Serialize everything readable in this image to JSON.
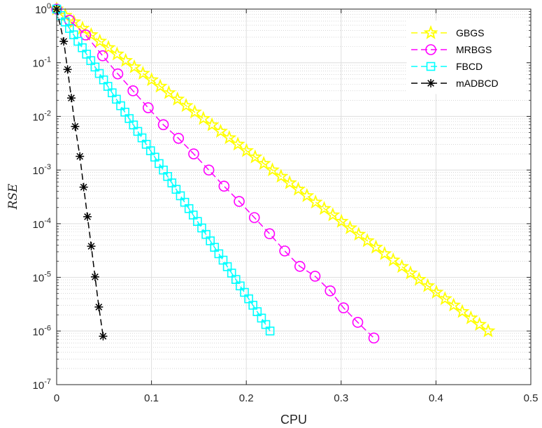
{
  "chart_data": {
    "type": "line",
    "title": "",
    "xlabel": "CPU",
    "ylabel": "RSE",
    "xscale": "linear",
    "yscale": "log",
    "xlim": [
      0,
      0.5
    ],
    "ylim": [
      1e-07,
      1
    ],
    "grid": true,
    "minor_grid": true,
    "legend_position": "top-right",
    "x_ticks": [
      {
        "value": 0,
        "label": "0"
      },
      {
        "value": 0.1,
        "label": "0.1"
      },
      {
        "value": 0.2,
        "label": "0.2"
      },
      {
        "value": 0.3,
        "label": "0.3"
      },
      {
        "value": 0.4,
        "label": "0.4"
      },
      {
        "value": 0.5,
        "label": "0.5"
      }
    ],
    "y_ticks": [
      {
        "value": 1e-07,
        "base": "10",
        "exp": "-7"
      },
      {
        "value": 1e-06,
        "base": "10",
        "exp": "-6"
      },
      {
        "value": 1e-05,
        "base": "10",
        "exp": "-5"
      },
      {
        "value": 0.0001,
        "base": "10",
        "exp": "-4"
      },
      {
        "value": 0.001,
        "base": "10",
        "exp": "-3"
      },
      {
        "value": 0.01,
        "base": "10",
        "exp": "-2"
      },
      {
        "value": 0.1,
        "base": "10",
        "exp": "-1"
      },
      {
        "value": 1,
        "base": "10",
        "exp": "0"
      }
    ],
    "series": [
      {
        "name": "GBGS",
        "color": "#FFFF00",
        "marker": "star",
        "line_style": "dashed",
        "x": [
          0,
          0.0091,
          0.0182,
          0.0273,
          0.0364,
          0.0455,
          0.0546,
          0.0637,
          0.0728,
          0.0819,
          0.091,
          0.1001,
          0.1092,
          0.1183,
          0.1274,
          0.1365,
          0.1456,
          0.1547,
          0.1638,
          0.1729,
          0.182,
          0.1911,
          0.2002,
          0.2093,
          0.2184,
          0.2275,
          0.2366,
          0.2457,
          0.2548,
          0.2639,
          0.273,
          0.2821,
          0.2912,
          0.3003,
          0.3094,
          0.3185,
          0.3276,
          0.3367,
          0.3458,
          0.3549,
          0.364,
          0.3731,
          0.3822,
          0.3913,
          0.4004,
          0.4095,
          0.4186,
          0.4277,
          0.4368,
          0.4459,
          0.455
        ],
        "y": [
          1.0,
          0.7586,
          0.5754,
          0.4365,
          0.3311,
          0.2512,
          0.1905,
          0.1445,
          0.1096,
          0.0832,
          0.0631,
          0.0479,
          0.0363,
          0.0275,
          0.0209,
          0.0158,
          0.012,
          0.0091,
          0.00692,
          0.00525,
          0.00398,
          0.00302,
          0.00229,
          0.00174,
          0.00132,
          0.001,
          0.000759,
          0.000575,
          0.000437,
          0.000331,
          0.000251,
          0.000191,
          0.000145,
          0.00011,
          8.32e-05,
          6.31e-05,
          4.79e-05,
          3.63e-05,
          2.75e-05,
          2.09e-05,
          1.58e-05,
          1.2e-05,
          9.12e-06,
          6.92e-06,
          5.25e-06,
          3.98e-06,
          3.02e-06,
          2.29e-06,
          1.74e-06,
          1.32e-06,
          1e-06
        ]
      },
      {
        "name": "MRBGS",
        "color": "#FF00FF",
        "marker": "circle",
        "line_style": "dashed",
        "x": [
          0,
          0.0135,
          0.0305,
          0.0485,
          0.0645,
          0.0805,
          0.0965,
          0.1125,
          0.1285,
          0.1445,
          0.1605,
          0.1765,
          0.1925,
          0.2085,
          0.2245,
          0.2405,
          0.2565,
          0.2725,
          0.2885,
          0.3025,
          0.3175,
          0.3345
        ],
        "y": [
          1.0,
          0.62,
          0.33,
          0.135,
          0.062,
          0.03,
          0.0145,
          0.007,
          0.0039,
          0.002,
          0.001,
          0.0005,
          0.00026,
          0.00013,
          6.5e-05,
          3.1e-05,
          1.6e-05,
          1.05e-05,
          5.6e-06,
          2.7e-06,
          1.45e-06,
          7.4e-07
        ]
      },
      {
        "name": "FBCD",
        "color": "#00FFFF",
        "marker": "square",
        "line_style": "dashed",
        "x": [
          0,
          0.0045,
          0.009,
          0.0135,
          0.018,
          0.0225,
          0.027,
          0.0315,
          0.036,
          0.0405,
          0.045,
          0.0495,
          0.054,
          0.0585,
          0.063,
          0.0675,
          0.072,
          0.0765,
          0.081,
          0.0855,
          0.09,
          0.0945,
          0.099,
          0.1035,
          0.108,
          0.1125,
          0.117,
          0.1215,
          0.126,
          0.1305,
          0.135,
          0.1395,
          0.144,
          0.1485,
          0.153,
          0.1575,
          0.162,
          0.1665,
          0.171,
          0.1755,
          0.18,
          0.1845,
          0.189,
          0.1935,
          0.198,
          0.2025,
          0.207,
          0.2115,
          0.216,
          0.2205,
          0.225
        ],
        "y": [
          1.0,
          0.7586,
          0.5754,
          0.4365,
          0.3311,
          0.2512,
          0.1905,
          0.1445,
          0.1096,
          0.0832,
          0.0631,
          0.0479,
          0.0363,
          0.0275,
          0.0209,
          0.0158,
          0.012,
          0.0091,
          0.00692,
          0.00525,
          0.00398,
          0.00302,
          0.00229,
          0.00174,
          0.00132,
          0.001,
          0.000759,
          0.000575,
          0.000437,
          0.000331,
          0.000251,
          0.000191,
          0.000145,
          0.00011,
          8.32e-05,
          6.31e-05,
          4.79e-05,
          3.63e-05,
          2.75e-05,
          2.09e-05,
          1.58e-05,
          1.2e-05,
          9.12e-06,
          6.92e-06,
          5.25e-06,
          3.98e-06,
          3.02e-06,
          2.29e-06,
          1.74e-06,
          1.32e-06,
          1e-06
        ]
      },
      {
        "name": "mADBCD",
        "color": "#000000",
        "marker": "asterisk",
        "line_style": "dashed",
        "x": [
          0,
          0.0075,
          0.0115,
          0.0155,
          0.0195,
          0.0245,
          0.0285,
          0.0325,
          0.0365,
          0.0405,
          0.0445,
          0.049
        ],
        "y": [
          1.0,
          0.25,
          0.075,
          0.022,
          0.0065,
          0.0018,
          0.00048,
          0.000135,
          3.8e-05,
          1.02e-05,
          2.8e-06,
          8e-07
        ]
      }
    ]
  }
}
